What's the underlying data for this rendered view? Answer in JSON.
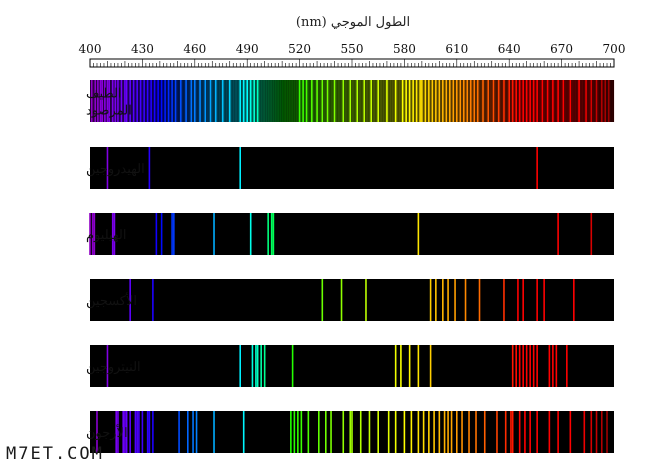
{
  "chart_data": {
    "type": "spectrum",
    "xlabel": "الطول الموجي (nm)",
    "xlim": [
      400,
      700
    ],
    "ticks": [
      400,
      430,
      460,
      490,
      520,
      550,
      580,
      610,
      640,
      670,
      700
    ],
    "rows": [
      {
        "label": [
          "الطيف",
          "المرصود"
        ],
        "continuous": true,
        "lines": [
          401,
          403,
          404.5,
          406,
          407,
          408.5,
          410,
          411,
          413,
          414.5,
          416,
          418,
          420,
          421,
          423,
          425,
          427,
          429,
          431,
          433,
          435,
          437,
          439,
          441,
          443,
          445,
          447,
          449,
          452,
          455,
          458,
          460,
          463,
          466,
          469,
          472,
          476,
          480,
          486,
          488,
          490,
          492,
          494,
          496,
          520,
          522,
          524,
          527,
          530,
          533,
          536,
          540,
          545,
          549,
          553,
          557,
          561,
          565,
          570,
          575,
          579,
          581,
          583,
          585,
          587,
          589,
          590,
          592,
          594,
          596,
          598,
          600,
          602,
          604,
          606,
          608,
          610,
          612,
          614,
          616,
          618,
          620,
          622,
          625,
          628,
          631,
          634,
          637,
          640,
          642,
          644,
          646,
          648,
          650,
          652,
          654,
          656,
          659,
          662,
          665,
          668,
          671,
          675,
          680,
          684,
          687,
          690,
          693,
          695,
          697
        ]
      },
      {
        "label": [
          "الهيدروجين"
        ],
        "lines": [
          410,
          434,
          486,
          656
        ]
      },
      {
        "label": [
          "الهيليوم"
        ],
        "lines": [
          400,
          401.5,
          402.5,
          413,
          414,
          438,
          441,
          447,
          448,
          471,
          492,
          502,
          504,
          505,
          588,
          668,
          687
        ]
      },
      {
        "label": [
          "الأكسجين"
        ],
        "lines": [
          423,
          436,
          533,
          544,
          558,
          595,
          598,
          602,
          605,
          609,
          615,
          623,
          637,
          645,
          648,
          656,
          660,
          677
        ]
      },
      {
        "label": [
          "النيتروجين"
        ],
        "lines": [
          410,
          486,
          493,
          495,
          496,
          498,
          500,
          516,
          575,
          578,
          583,
          588,
          595,
          642,
          644,
          646,
          648,
          650,
          652,
          654,
          656,
          663,
          665,
          667,
          673
        ]
      },
      {
        "label": [
          "الأرجون"
        ],
        "lines": [
          404,
          415,
          416,
          419,
          420,
          421,
          423,
          426,
          427,
          428,
          430,
          433,
          434,
          436,
          451,
          456,
          459,
          461,
          471,
          488,
          515,
          517,
          519,
          521,
          525,
          531,
          535,
          538,
          545,
          549,
          550,
          555,
          560,
          565,
          571,
          575,
          580,
          584,
          588,
          591,
          594,
          597,
          600,
          603,
          605,
          607,
          610,
          613,
          617,
          621,
          626,
          633,
          638,
          641,
          642,
          646,
          649,
          652,
          656,
          663,
          668,
          675,
          683,
          687,
          690,
          693,
          696
        ]
      }
    ]
  },
  "watermark": "M7ET.COM"
}
